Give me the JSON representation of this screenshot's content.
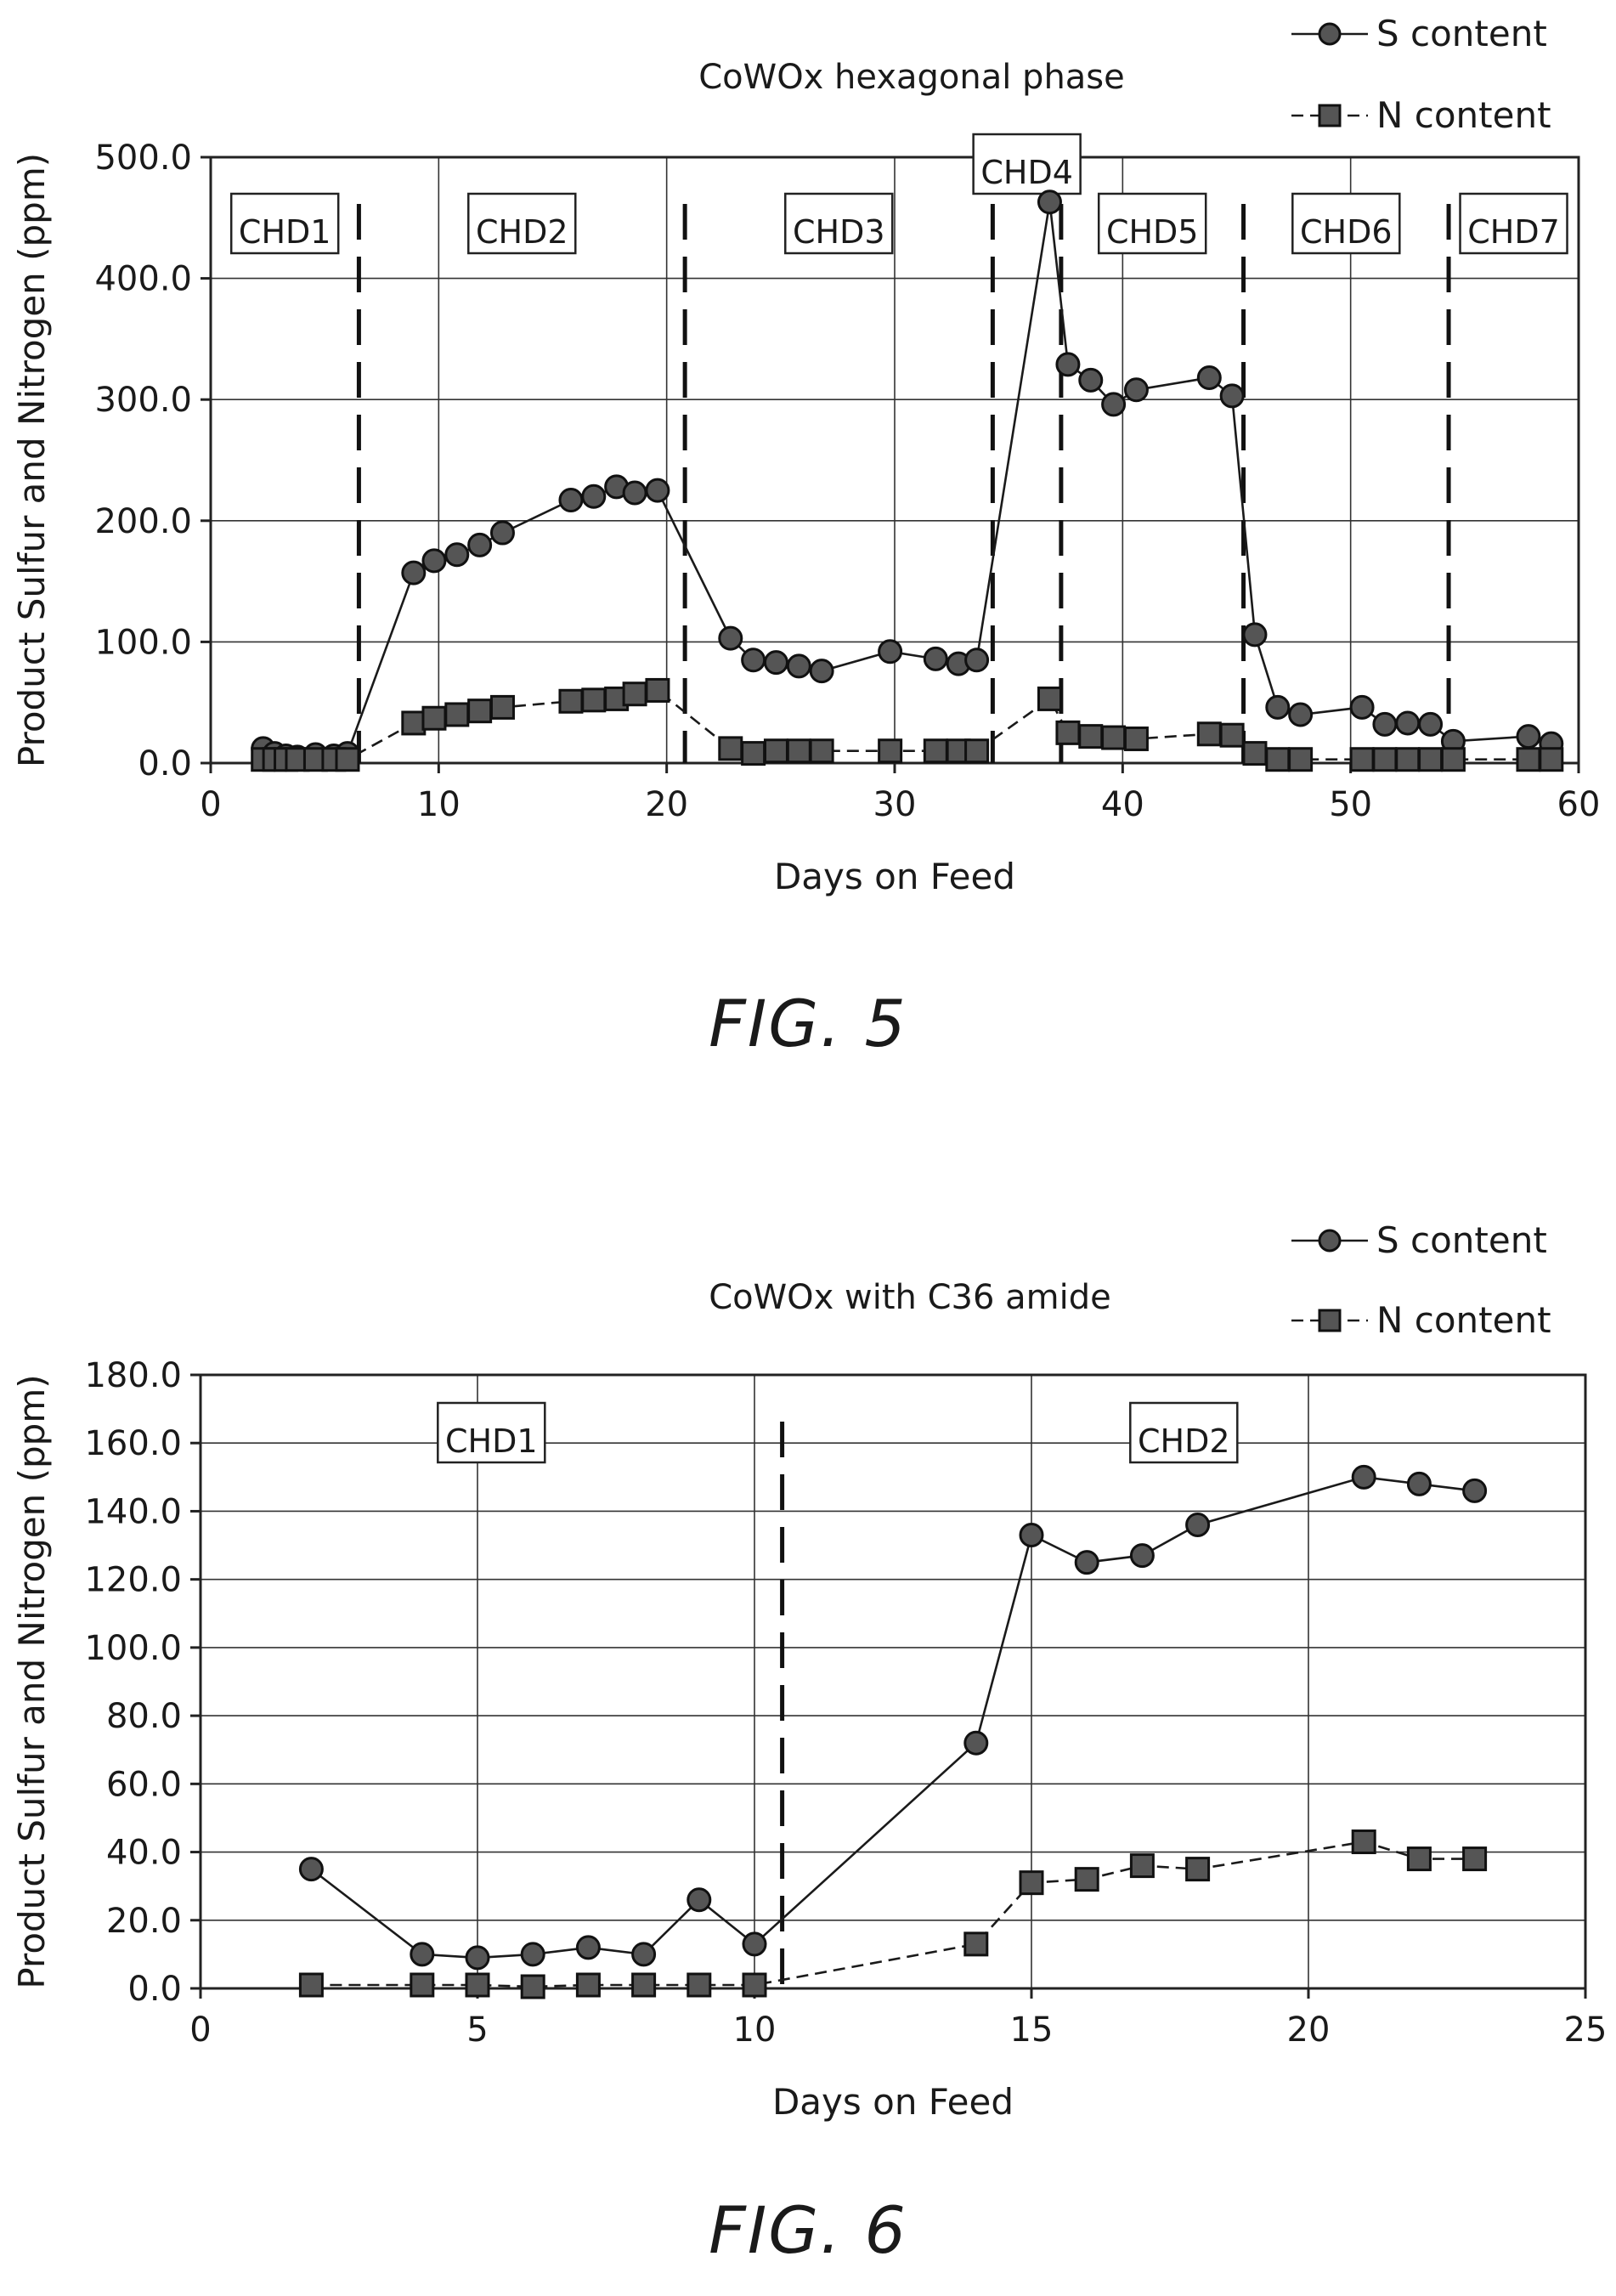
{
  "figures": [
    {
      "caption": "FIG. 5",
      "chart_data": {
        "type": "line",
        "title": "CoWOx hexagonal phase",
        "xlabel": "Days on Feed",
        "ylabel": "Product Sulfur and Nitrogen (ppm)",
        "xlim": [
          0,
          60
        ],
        "ylim": [
          0,
          500
        ],
        "xticks": [
          0,
          10,
          20,
          30,
          40,
          50,
          60
        ],
        "xtick_labels": [
          "0",
          "10",
          "20",
          "30",
          "40",
          "50",
          "60"
        ],
        "yticks": [
          0,
          100,
          200,
          300,
          400,
          500
        ],
        "ytick_labels": [
          "0.0",
          "100.0",
          "200.0",
          "300.0",
          "400.0",
          "500.0"
        ],
        "grid": true,
        "legend_position": "top-right",
        "series": [
          {
            "name": "S content",
            "marker": "circle",
            "line": "solid",
            "x": [
              2.3,
              2.8,
              3.3,
              3.8,
              4.6,
              5.4,
              6.0,
              8.9,
              9.8,
              10.8,
              11.8,
              12.8,
              15.8,
              16.8,
              17.8,
              18.6,
              19.6,
              22.8,
              23.8,
              24.8,
              25.8,
              26.8,
              29.8,
              31.8,
              32.8,
              33.6,
              36.8,
              37.6,
              38.6,
              39.6,
              40.6,
              43.8,
              44.8,
              45.8,
              46.8,
              47.8,
              50.5,
              51.5,
              52.5,
              53.5,
              54.5,
              57.8,
              58.8
            ],
            "y": [
              12,
              8,
              6,
              5,
              7,
              6,
              8,
              157,
              167,
              172,
              180,
              190,
              217,
              220,
              228,
              223,
              225,
              103,
              85,
              83,
              80,
              76,
              92,
              86,
              82,
              85,
              463,
              329,
              316,
              296,
              308,
              318,
              303,
              106,
              46,
              40,
              46,
              32,
              33,
              32,
              18,
              22,
              16
            ]
          },
          {
            "name": "N content",
            "marker": "square",
            "line": "dashed",
            "x": [
              2.3,
              2.8,
              3.3,
              3.8,
              4.6,
              5.4,
              6.0,
              8.9,
              9.8,
              10.8,
              11.8,
              12.8,
              15.8,
              16.8,
              17.8,
              18.6,
              19.6,
              22.8,
              23.8,
              24.8,
              25.8,
              26.8,
              29.8,
              31.8,
              32.8,
              33.6,
              36.8,
              37.6,
              38.6,
              39.6,
              40.6,
              43.8,
              44.8,
              45.8,
              46.8,
              47.8,
              50.5,
              51.5,
              52.5,
              53.5,
              54.5,
              57.8,
              58.8
            ],
            "y": [
              3,
              3,
              3,
              3,
              3,
              3,
              3,
              33,
              37,
              40,
              43,
              46,
              51,
              52,
              53,
              57,
              60,
              12,
              8,
              10,
              10,
              10,
              10,
              10,
              10,
              10,
              53,
              25,
              22,
              21,
              20,
              24,
              23,
              8,
              3,
              3,
              3,
              3,
              3,
              3,
              3,
              3,
              3
            ]
          }
        ],
        "regions": [
          {
            "label": "CHD1",
            "start": 0,
            "end": 6.5
          },
          {
            "label": "CHD2",
            "start": 6.5,
            "end": 20.8
          },
          {
            "label": "CHD3",
            "start": 20.8,
            "end": 34.3
          },
          {
            "label": "CHD4",
            "start": 34.3,
            "end": 37.3
          },
          {
            "label": "CHD5",
            "start": 37.3,
            "end": 45.3
          },
          {
            "label": "CHD6",
            "start": 45.3,
            "end": 54.3
          },
          {
            "label": "CHD7",
            "start": 54.3,
            "end": 60
          }
        ]
      }
    },
    {
      "caption": "FIG. 6",
      "chart_data": {
        "type": "line",
        "title": "CoWOx with C36 amide",
        "xlabel": "Days on Feed",
        "ylabel": "Product Sulfur and Nitrogen (ppm)",
        "xlim": [
          0,
          25
        ],
        "ylim": [
          0,
          180
        ],
        "xticks": [
          0,
          5,
          10,
          15,
          20,
          25
        ],
        "xtick_labels": [
          "0",
          "5",
          "10",
          "15",
          "20",
          "25"
        ],
        "yticks": [
          0,
          20,
          40,
          60,
          80,
          100,
          120,
          140,
          160,
          180
        ],
        "ytick_labels": [
          "0.0",
          "20.0",
          "40.0",
          "60.0",
          "80.0",
          "100.0",
          "120.0",
          "140.0",
          "160.0",
          "180.0"
        ],
        "grid": true,
        "legend_position": "top-right",
        "series": [
          {
            "name": "S content",
            "marker": "circle",
            "line": "solid",
            "x": [
              2,
              4,
              5,
              6,
              7,
              8,
              9,
              10,
              14,
              15,
              16,
              17,
              18,
              21,
              22,
              23
            ],
            "y": [
              35,
              10,
              9,
              10,
              12,
              10,
              26,
              13,
              72,
              133,
              125,
              127,
              136,
              150,
              148,
              146
            ]
          },
          {
            "name": "N content",
            "marker": "square",
            "line": "dashed",
            "x": [
              2,
              4,
              5,
              6,
              7,
              8,
              9,
              10,
              14,
              15,
              16,
              17,
              18,
              21,
              22,
              23
            ],
            "y": [
              1,
              1,
              1,
              0.5,
              1,
              1,
              1,
              1,
              13,
              31,
              32,
              36,
              35,
              43,
              38,
              38
            ]
          }
        ],
        "regions": [
          {
            "label": "CHD1",
            "start": 0,
            "end": 10.5
          },
          {
            "label": "CHD2",
            "start": 10.5,
            "end": 25
          }
        ]
      }
    }
  ]
}
